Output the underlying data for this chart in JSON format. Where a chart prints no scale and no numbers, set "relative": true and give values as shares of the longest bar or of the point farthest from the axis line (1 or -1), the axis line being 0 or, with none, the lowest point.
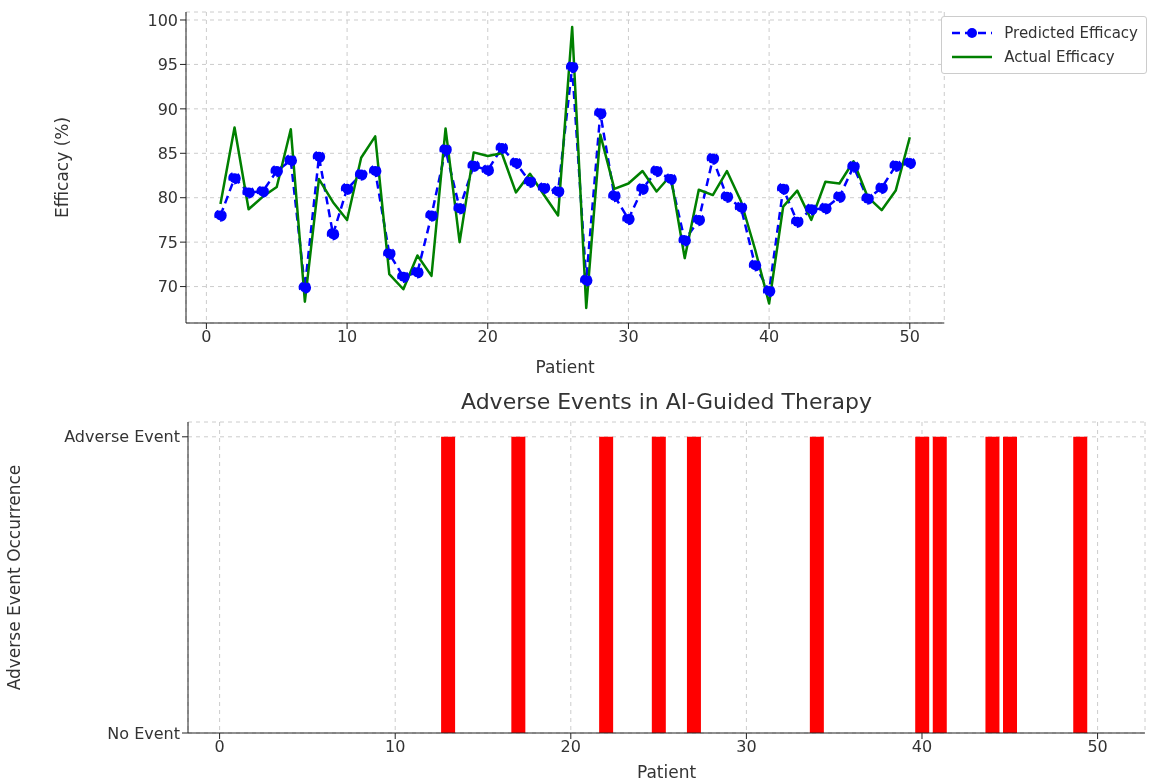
{
  "chart_data": [
    {
      "type": "line",
      "xlabel": "Patient",
      "ylabel": "Efficacy (%)",
      "x": [
        1,
        2,
        3,
        4,
        5,
        6,
        7,
        8,
        9,
        10,
        11,
        12,
        13,
        14,
        15,
        16,
        17,
        18,
        19,
        20,
        21,
        22,
        23,
        24,
        25,
        26,
        27,
        28,
        29,
        30,
        31,
        32,
        33,
        34,
        35,
        36,
        37,
        38,
        39,
        40,
        41,
        42,
        43,
        44,
        45,
        46,
        47,
        48,
        49,
        50
      ],
      "series": [
        {
          "name": "Predicted Efficacy",
          "color": "#0000ff",
          "line_style": "dashed",
          "marker": "circle",
          "values": [
            78.0,
            82.2,
            80.6,
            80.7,
            83.0,
            84.2,
            69.9,
            84.6,
            75.9,
            81.0,
            82.6,
            83.0,
            73.7,
            71.1,
            71.6,
            78.0,
            85.4,
            78.8,
            83.6,
            83.1,
            85.6,
            83.9,
            81.8,
            81.1,
            80.7,
            94.7,
            70.7,
            89.5,
            80.2,
            77.6,
            81.0,
            83.0,
            82.1,
            75.2,
            77.5,
            84.4,
            80.1,
            78.9,
            72.4,
            69.5,
            81.0,
            77.3,
            78.7,
            78.8,
            80.1,
            83.5,
            79.9,
            81.1,
            83.6,
            83.9
          ]
        },
        {
          "name": "Actual Efficacy",
          "color": "#008000",
          "line_style": "solid",
          "marker": "none",
          "values": [
            79.3,
            87.9,
            78.7,
            80.1,
            81.2,
            87.7,
            68.3,
            82.1,
            79.5,
            77.5,
            84.5,
            86.9,
            71.4,
            69.7,
            73.5,
            71.2,
            87.8,
            75.0,
            85.1,
            84.7,
            85.0,
            80.6,
            82.7,
            80.3,
            78.0,
            99.2,
            67.6,
            87.1,
            81.0,
            81.6,
            83.0,
            80.7,
            82.5,
            73.2,
            80.9,
            80.3,
            83.0,
            79.6,
            74.2,
            68.1,
            79.0,
            80.8,
            77.5,
            81.8,
            81.6,
            84.1,
            80.1,
            78.6,
            80.8,
            86.8
          ]
        }
      ],
      "xlim": [
        -1.45,
        52.45
      ],
      "xticks": [
        0,
        10,
        20,
        30,
        40,
        50
      ],
      "ylim": [
        65.9,
        100.9
      ],
      "yticks": [
        70,
        75,
        80,
        85,
        90,
        95,
        100
      ],
      "grid": true,
      "legend": "top right"
    },
    {
      "type": "bar",
      "title": "Adverse Events in AI-Guided Therapy",
      "xlabel": "Patient",
      "ylabel": "Adverse Event Occurrence",
      "x": [
        13,
        17,
        22,
        25,
        27,
        34,
        40,
        41,
        44,
        45,
        49
      ],
      "values": [
        1,
        1,
        1,
        1,
        1,
        1,
        1,
        1,
        1,
        1,
        1
      ],
      "color": "#ff0000",
      "relative": true,
      "annotations": [
        "No Event",
        "Adverse Event"
      ],
      "xlim": [
        -1.8,
        52.7
      ],
      "xticks": [
        0,
        10,
        20,
        30,
        40,
        50
      ],
      "grid": true
    }
  ]
}
